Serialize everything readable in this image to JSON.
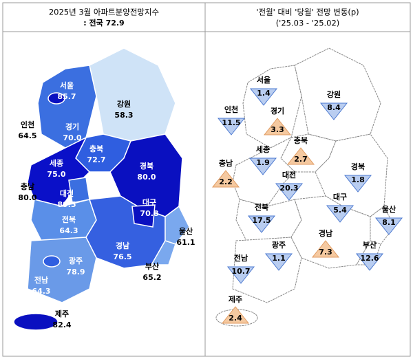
{
  "left": {
    "title": "2025년 3월 아파트분양전망지수",
    "subtitle": ": 전국 72.9",
    "regions": [
      {
        "name": "서울",
        "value": "85.7"
      },
      {
        "name": "강원",
        "value": "58.3"
      },
      {
        "name": "인천",
        "value": "64.5"
      },
      {
        "name": "경기",
        "value": "70.0"
      },
      {
        "name": "충북",
        "value": "72.7"
      },
      {
        "name": "세종",
        "value": "75.0"
      },
      {
        "name": "경북",
        "value": "80.0"
      },
      {
        "name": "충남",
        "value": "80.0"
      },
      {
        "name": "대전",
        "value": "89.5"
      },
      {
        "name": "대구",
        "value": "70.8"
      },
      {
        "name": "전북",
        "value": "64.3"
      },
      {
        "name": "울산",
        "value": "61.1"
      },
      {
        "name": "경남",
        "value": "76.5"
      },
      {
        "name": "광주",
        "value": "78.9"
      },
      {
        "name": "부산",
        "value": "65.2"
      },
      {
        "name": "전남",
        "value": "64.3"
      },
      {
        "name": "제주",
        "value": "82.4"
      }
    ]
  },
  "right": {
    "title": "'전월' 대비 '당월' 전망 변동(p)",
    "subtitle": "('25.03  -  '25.02)",
    "regions": [
      {
        "name": "서울",
        "value": "1.4",
        "direction": "down"
      },
      {
        "name": "강원",
        "value": "8.4",
        "direction": "down"
      },
      {
        "name": "인천",
        "value": "11.5",
        "direction": "down"
      },
      {
        "name": "경기",
        "value": "3.3",
        "direction": "up"
      },
      {
        "name": "충북",
        "value": "2.7",
        "direction": "up"
      },
      {
        "name": "세종",
        "value": "1.9",
        "direction": "down"
      },
      {
        "name": "충남",
        "value": "2.2",
        "direction": "up"
      },
      {
        "name": "대전",
        "value": "20.3",
        "direction": "down"
      },
      {
        "name": "경북",
        "value": "1.8",
        "direction": "down"
      },
      {
        "name": "전북",
        "value": "17.5",
        "direction": "down"
      },
      {
        "name": "대구",
        "value": "5.4",
        "direction": "down"
      },
      {
        "name": "울산",
        "value": "8.1",
        "direction": "down"
      },
      {
        "name": "경남",
        "value": "7.3",
        "direction": "up"
      },
      {
        "name": "광주",
        "value": "1.1",
        "direction": "down"
      },
      {
        "name": "부산",
        "value": "12.6",
        "direction": "down"
      },
      {
        "name": "전남",
        "value": "10.7",
        "direction": "down"
      },
      {
        "name": "제주",
        "value": "2.4",
        "direction": "up"
      }
    ]
  }
}
